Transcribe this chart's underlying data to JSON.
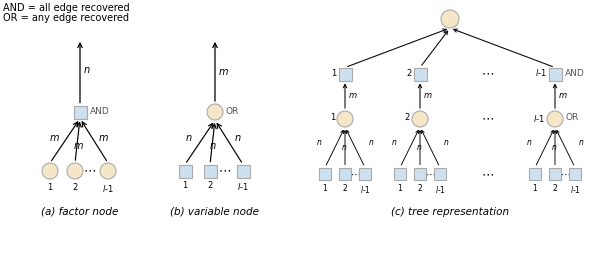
{
  "fig_width": 5.98,
  "fig_height": 2.74,
  "dpi": 100,
  "bg_color": "#ffffff",
  "circle_color": "#f5e6c8",
  "circle_edge": "#aaaaaa",
  "square_color": "#cce0f0",
  "square_edge": "#aaaaaa",
  "text_color": "#000000",
  "gray_text": "#555555",
  "legend_text": [
    "AND = all edge recovered",
    "OR = any edge recovered"
  ],
  "caption_a": "(a) factor node",
  "caption_b": "(b) variable node",
  "caption_c": "(c) tree representation",
  "node_r": 8,
  "sq_s": 13
}
